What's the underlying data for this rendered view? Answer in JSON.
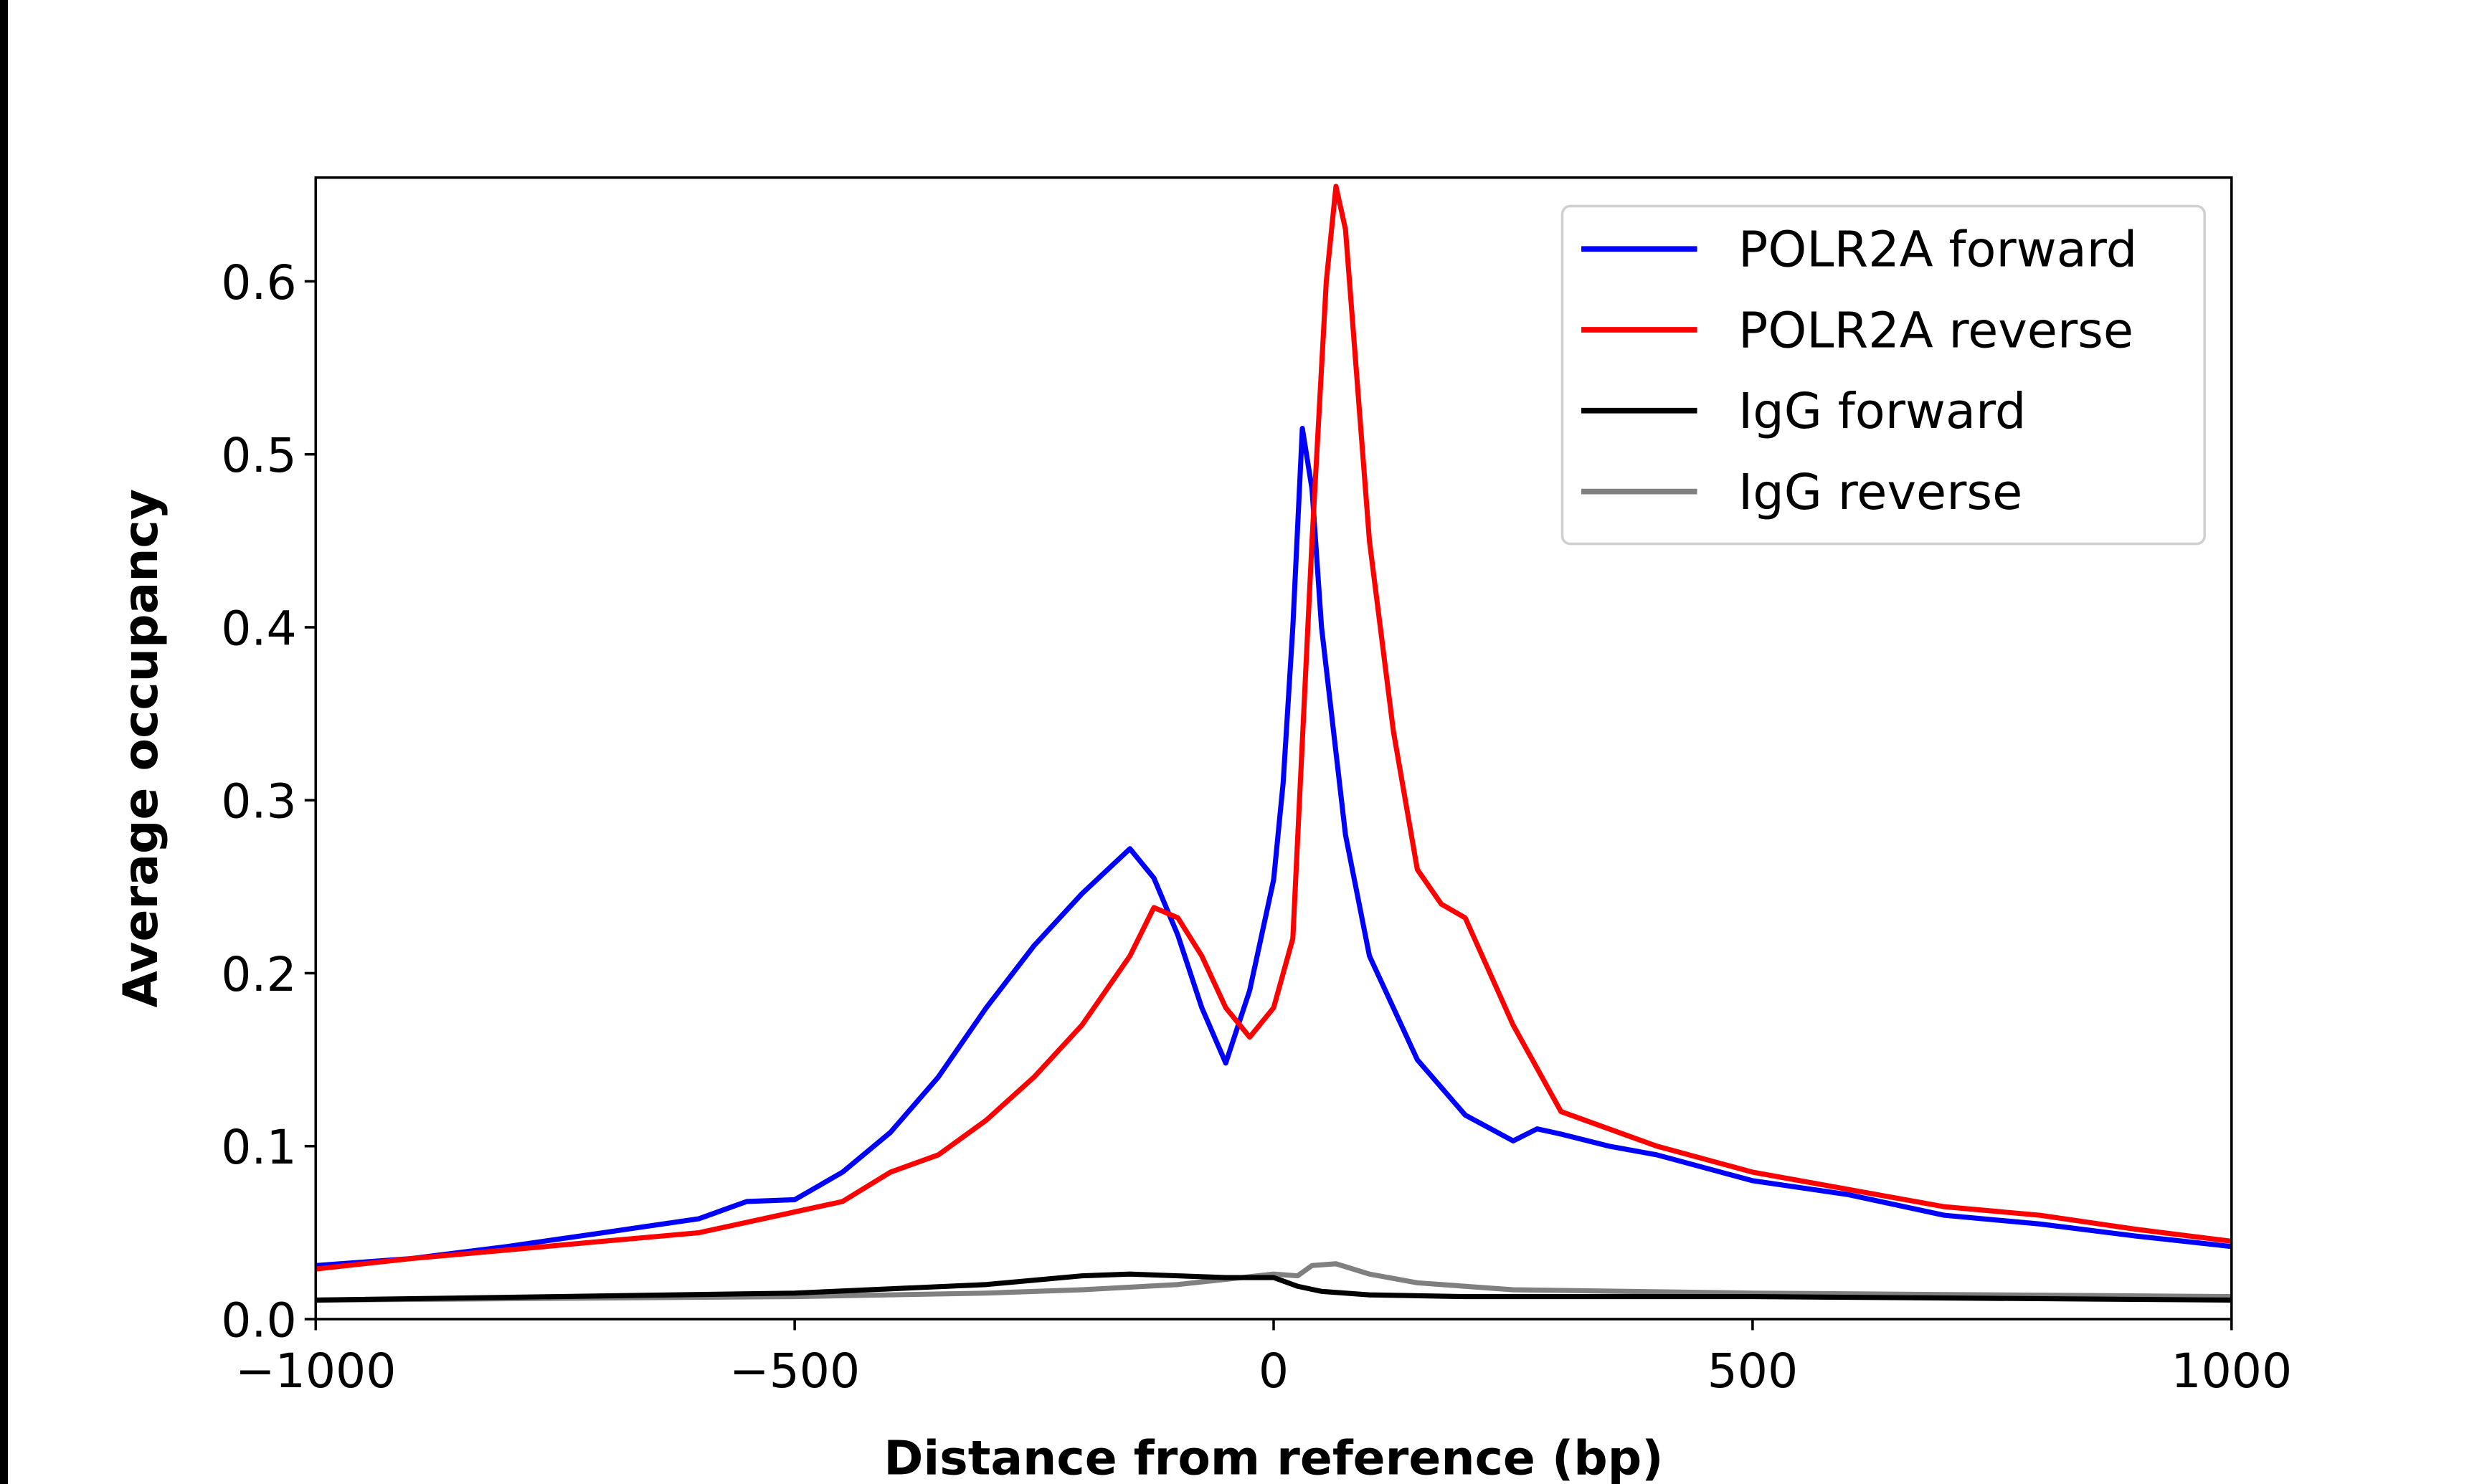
{
  "chart_data": {
    "type": "line",
    "title": "",
    "xlabel": "Distance from reference (bp)",
    "ylabel": "Average occupancy",
    "xlim": [
      -1000,
      1000
    ],
    "ylim": [
      0,
      0.66
    ],
    "xticks": [
      -1000,
      -500,
      0,
      500,
      1000
    ],
    "xtick_labels": [
      "−1000",
      "−500",
      "0",
      "500",
      "1000"
    ],
    "yticks": [
      0.0,
      0.1,
      0.2,
      0.3,
      0.4,
      0.5,
      0.6
    ],
    "ytick_labels": [
      "0.0",
      "0.1",
      "0.2",
      "0.3",
      "0.4",
      "0.5",
      "0.6"
    ],
    "grid": false,
    "legend_position": "top-right",
    "series": [
      {
        "name": "POLR2A forward",
        "color": "#0000ff",
        "x": [
          -1000,
          -900,
          -800,
          -700,
          -600,
          -550,
          -500,
          -450,
          -400,
          -350,
          -300,
          -250,
          -200,
          -150,
          -125,
          -100,
          -75,
          -50,
          -25,
          0,
          10,
          20,
          30,
          40,
          50,
          75,
          100,
          150,
          200,
          250,
          275,
          300,
          350,
          400,
          500,
          600,
          700,
          800,
          900,
          1000
        ],
        "y": [
          0.031,
          0.035,
          0.042,
          0.05,
          0.058,
          0.068,
          0.069,
          0.085,
          0.108,
          0.14,
          0.18,
          0.216,
          0.246,
          0.272,
          0.255,
          0.222,
          0.18,
          0.148,
          0.19,
          0.254,
          0.31,
          0.4,
          0.515,
          0.48,
          0.4,
          0.28,
          0.21,
          0.15,
          0.118,
          0.103,
          0.11,
          0.107,
          0.1,
          0.095,
          0.08,
          0.072,
          0.06,
          0.055,
          0.048,
          0.042
        ]
      },
      {
        "name": "POLR2A reverse",
        "color": "#ff0000",
        "x": [
          -1000,
          -900,
          -800,
          -700,
          -600,
          -500,
          -450,
          -400,
          -350,
          -300,
          -250,
          -200,
          -150,
          -125,
          -100,
          -75,
          -50,
          -25,
          0,
          20,
          40,
          55,
          65,
          75,
          100,
          125,
          150,
          175,
          200,
          250,
          300,
          350,
          400,
          500,
          600,
          700,
          800,
          900,
          1000
        ],
        "y": [
          0.029,
          0.035,
          0.04,
          0.045,
          0.05,
          0.062,
          0.068,
          0.085,
          0.095,
          0.115,
          0.14,
          0.17,
          0.21,
          0.238,
          0.232,
          0.21,
          0.18,
          0.163,
          0.18,
          0.22,
          0.45,
          0.6,
          0.655,
          0.63,
          0.45,
          0.34,
          0.26,
          0.24,
          0.232,
          0.17,
          0.12,
          0.11,
          0.1,
          0.085,
          0.075,
          0.065,
          0.06,
          0.052,
          0.045
        ]
      },
      {
        "name": "IgG forward",
        "color": "#000000",
        "x": [
          -1000,
          -500,
          -300,
          -200,
          -150,
          -100,
          -50,
          0,
          25,
          50,
          100,
          200,
          500,
          1000
        ],
        "y": [
          0.011,
          0.015,
          0.02,
          0.025,
          0.026,
          0.025,
          0.024,
          0.024,
          0.019,
          0.016,
          0.014,
          0.013,
          0.013,
          0.011
        ]
      },
      {
        "name": "IgG reverse",
        "color": "#808080",
        "x": [
          -1000,
          -500,
          -300,
          -200,
          -100,
          0,
          25,
          40,
          65,
          100,
          150,
          250,
          500,
          1000
        ],
        "y": [
          0.011,
          0.013,
          0.015,
          0.017,
          0.02,
          0.026,
          0.025,
          0.031,
          0.032,
          0.026,
          0.021,
          0.017,
          0.015,
          0.013
        ]
      }
    ]
  }
}
